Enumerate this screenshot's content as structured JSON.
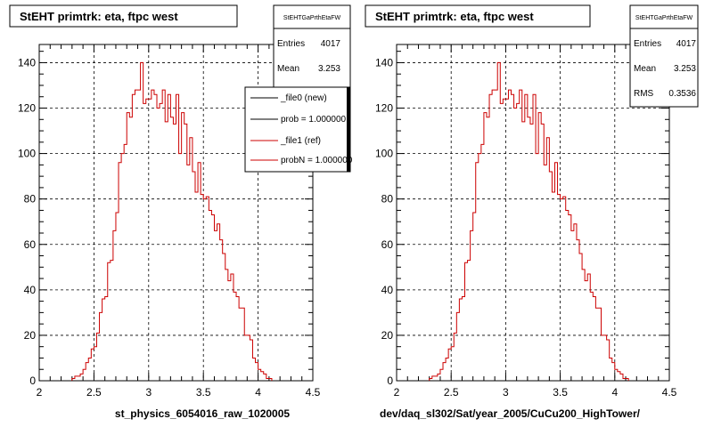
{
  "chart_data": [
    {
      "type": "histogram",
      "title": "StEHT primtrk: eta, ftpc west",
      "xlabel": "st_physics_6054016_raw_1020005",
      "xlim": [
        2,
        4.5
      ],
      "ylim": [
        0,
        148
      ],
      "x_ticks": [
        "2",
        "2.5",
        "3",
        "3.5",
        "4",
        "4.5"
      ],
      "y_ticks": [
        "0",
        "20",
        "40",
        "60",
        "80",
        "100",
        "120",
        "140"
      ],
      "grid": true,
      "bin_width": 0.025,
      "series": [
        {
          "name": "_file1 (ref)",
          "color": "#cc0000",
          "bin_start": 2.3,
          "values": [
            1,
            2,
            2,
            3,
            5,
            8,
            10,
            14,
            15,
            21,
            30,
            36,
            37,
            52,
            53,
            66,
            74,
            96,
            100,
            104,
            118,
            116,
            126,
            128,
            128,
            140,
            122,
            124,
            124,
            128,
            126,
            120,
            122,
            128,
            114,
            126,
            116,
            113,
            126,
            100,
            118,
            113,
            95,
            107,
            92,
            83,
            96,
            82,
            80,
            81,
            75,
            73,
            66,
            69,
            62,
            56,
            49,
            44,
            47,
            39,
            37,
            32,
            32,
            20,
            20,
            18,
            10,
            8,
            5,
            4,
            3,
            1,
            1
          ]
        }
      ],
      "stats": {
        "header": "StEHTGaPrthEtaFW",
        "rows": [
          {
            "label": "Entries",
            "value": "4017"
          },
          {
            "label": "Mean",
            "value": "3.253"
          }
        ]
      },
      "legend": {
        "position": "top-right",
        "entries": [
          {
            "label": "_file0 (new)",
            "color": "#000000"
          },
          {
            "label": "prob = 1.000000",
            "color": "#000000"
          },
          {
            "label": "_file1 (ref)",
            "color": "#cc0000"
          },
          {
            "label": "probN = 1.000000",
            "color": "#cc0000"
          }
        ]
      }
    },
    {
      "type": "histogram",
      "title": "StEHT primtrk: eta, ftpc west",
      "xlabel": "dev/daq_sl302/Sat/year_2005/CuCu200_HighTower/",
      "xlim": [
        2,
        4.5
      ],
      "ylim": [
        0,
        148
      ],
      "x_ticks": [
        "2",
        "2.5",
        "3",
        "3.5",
        "4",
        "4.5"
      ],
      "y_ticks": [
        "0",
        "20",
        "40",
        "60",
        "80",
        "100",
        "120",
        "140"
      ],
      "grid": true,
      "bin_width": 0.025,
      "series": [
        {
          "name": "",
          "color": "#cc0000",
          "bin_start": 2.3,
          "values": [
            1,
            2,
            2,
            3,
            5,
            8,
            10,
            14,
            15,
            21,
            30,
            36,
            37,
            52,
            53,
            66,
            74,
            96,
            100,
            104,
            118,
            116,
            126,
            128,
            128,
            140,
            122,
            124,
            124,
            128,
            126,
            120,
            122,
            128,
            114,
            126,
            116,
            113,
            126,
            100,
            118,
            113,
            95,
            107,
            92,
            83,
            96,
            82,
            80,
            81,
            75,
            73,
            66,
            69,
            62,
            56,
            49,
            44,
            47,
            39,
            37,
            32,
            32,
            20,
            20,
            18,
            10,
            8,
            5,
            4,
            3,
            1,
            1
          ]
        }
      ],
      "stats": {
        "header": "StEHTGaPrthEtaFW",
        "rows": [
          {
            "label": "Entries",
            "value": "4017"
          },
          {
            "label": "Mean",
            "value": "3.253"
          },
          {
            "label": "RMS",
            "value": "0.3536"
          }
        ]
      }
    }
  ]
}
